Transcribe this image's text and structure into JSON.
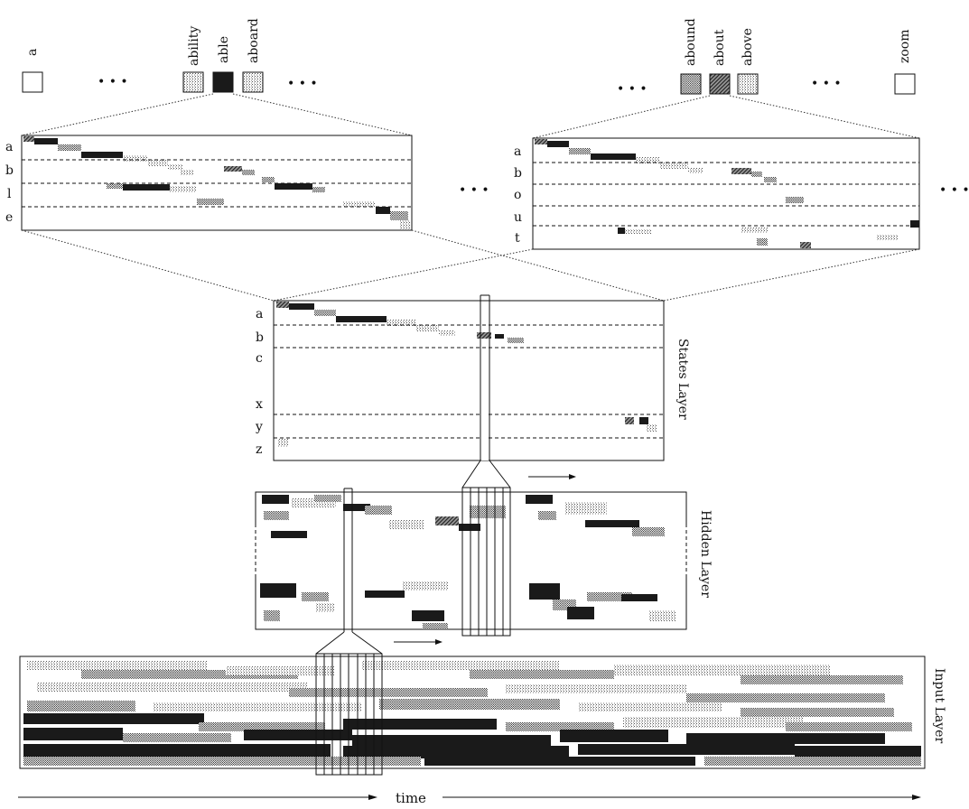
{
  "output_words": {
    "first": "a",
    "group1": [
      "ability",
      "able",
      "aboard"
    ],
    "group2": [
      "abound",
      "about",
      "above"
    ],
    "last": "zoom",
    "ellipsis": "• • •"
  },
  "word_boxes": {
    "a": "empty",
    "ability": "light-dotted",
    "able": "dark",
    "aboard": "light-dotted",
    "abound": "medium-dotted",
    "about": "hatched",
    "above": "light-dotted",
    "zoom": "empty"
  },
  "able_matrix": {
    "rows": [
      "a",
      "b",
      "l",
      "e"
    ]
  },
  "about_matrix": {
    "rows": [
      "a",
      "b",
      "o",
      "u",
      "t"
    ]
  },
  "states_layer": {
    "label": "States Layer",
    "rows": [
      "a",
      "b",
      "c",
      "x",
      "y",
      "z"
    ]
  },
  "hidden_layer": {
    "label": "Hidden Layer"
  },
  "input_layer": {
    "label": "Input Layer"
  },
  "time_axis": {
    "label": "time"
  },
  "colors": {
    "ink": "#111111",
    "dark": "#1a1a1a",
    "light": "#c8c8c8"
  }
}
